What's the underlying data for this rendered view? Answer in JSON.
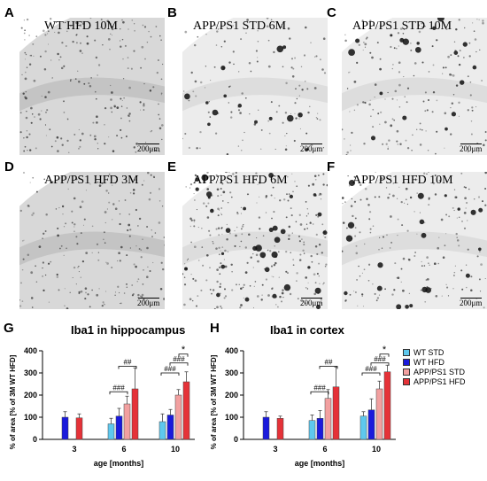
{
  "panels": [
    {
      "label": "A",
      "title": "WT HFD 10M",
      "scale": "200μm",
      "density": 0.6
    },
    {
      "label": "B",
      "title": "APP/PS1 STD 6M",
      "scale": "200μm",
      "density": 0.35
    },
    {
      "label": "C",
      "title": "APP/PS1 STD 10M",
      "scale": "200μm",
      "density": 0.45
    },
    {
      "label": "D",
      "title": "APP/PS1 HFD 3M",
      "scale": "200μm",
      "density": 0.55
    },
    {
      "label": "E",
      "title": "APP/PS1 HFD 6M",
      "scale": "200μm",
      "density": 0.8
    },
    {
      "label": "F",
      "title": "APP/PS1 HFD 10M",
      "scale": "200μm",
      "density": 0.5
    }
  ],
  "chart_labels": {
    "G": "G",
    "H": "H"
  },
  "legend": [
    {
      "name": "WT STD",
      "color": "#5ec8ee"
    },
    {
      "name": "WT HFD",
      "color": "#1a1adc"
    },
    {
      "name": "APP/PS1 STD",
      "color": "#f2a0a0"
    },
    {
      "name": "APP/PS1 HFD",
      "color": "#e53238"
    }
  ],
  "chart_data": [
    {
      "type": "bar",
      "title": "Iba1 in hippocampus",
      "xlabel": "age [months]",
      "ylabel": "% of area [% of 3M WT HFD]",
      "ylim": [
        0,
        400
      ],
      "yticks": [
        "0",
        "100",
        "200",
        "300",
        "400"
      ],
      "categories": [
        "3",
        "6",
        "10"
      ],
      "series": [
        {
          "name": "WT STD",
          "values": [
            null,
            70,
            80
          ],
          "errors": [
            null,
            25,
            35
          ]
        },
        {
          "name": "WT HFD",
          "values": [
            100,
            105,
            110
          ],
          "errors": [
            25,
            35,
            25
          ]
        },
        {
          "name": "APP/PS1 STD",
          "values": [
            null,
            160,
            200
          ],
          "errors": [
            null,
            35,
            25
          ]
        },
        {
          "name": "APP/PS1 HFD",
          "values": [
            97,
            228,
            260
          ],
          "errors": [
            18,
            95,
            45
          ]
        }
      ],
      "annotations": [
        "###",
        "##",
        "###",
        "###",
        "*"
      ]
    },
    {
      "type": "bar",
      "title": "Iba1 in cortex",
      "xlabel": "age [months]",
      "ylabel": "% of area [% of 3M WT HFD]",
      "ylim": [
        0,
        400
      ],
      "yticks": [
        "0",
        "100",
        "200",
        "300",
        "400"
      ],
      "categories": [
        "3",
        "6",
        "10"
      ],
      "series": [
        {
          "name": "WT STD",
          "values": [
            null,
            85,
            105
          ],
          "errors": [
            null,
            25,
            20
          ]
        },
        {
          "name": "WT HFD",
          "values": [
            100,
            95,
            133
          ],
          "errors": [
            25,
            35,
            50
          ]
        },
        {
          "name": "APP/PS1 STD",
          "values": [
            null,
            185,
            228
          ],
          "errors": [
            null,
            40,
            35
          ]
        },
        {
          "name": "APP/PS1 HFD",
          "values": [
            95,
            237,
            305
          ],
          "errors": [
            10,
            90,
            30
          ]
        }
      ],
      "annotations": [
        "###",
        "##",
        "###",
        "###",
        "*"
      ]
    }
  ]
}
